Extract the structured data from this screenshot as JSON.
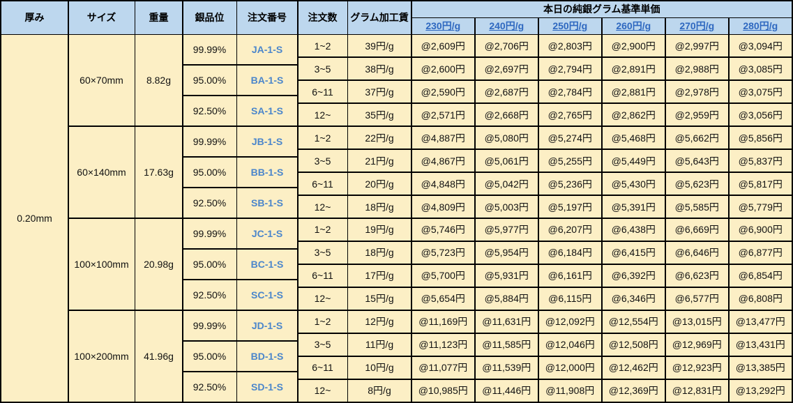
{
  "table": {
    "headers": {
      "thickness": "厚み",
      "size": "サイズ",
      "weight": "重量",
      "purity": "銀品位",
      "order_no": "注文番号",
      "order_qty": "注文数",
      "gram_fee": "グラム加工賃",
      "base_price_group": "本日の純銀グラム基準単価",
      "price_columns": [
        "230円/g",
        "240円/g",
        "250円/g",
        "260円/g",
        "270円/g",
        "280円/g"
      ]
    },
    "thickness_value": "0.20mm",
    "sections": [
      {
        "size": "60×70mm",
        "weight": "8.82g",
        "purities": [
          {
            "purity": "99.99%",
            "order_no": "JA-1-S"
          },
          {
            "purity": "95.00%",
            "order_no": "BA-1-S"
          },
          {
            "purity": "92.50%",
            "order_no": "SA-1-S"
          }
        ],
        "rows": [
          {
            "qty": "1~2",
            "fee": "39円/g",
            "prices": [
              "@2,609円",
              "@2,706円",
              "@2,803円",
              "@2,900円",
              "@2,997円",
              "@3,094円"
            ]
          },
          {
            "qty": "3~5",
            "fee": "38円/g",
            "prices": [
              "@2,600円",
              "@2,697円",
              "@2,794円",
              "@2,891円",
              "@2,988円",
              "@3,085円"
            ]
          },
          {
            "qty": "6~11",
            "fee": "37円/g",
            "prices": [
              "@2,590円",
              "@2,687円",
              "@2,784円",
              "@2,881円",
              "@2,978円",
              "@3,075円"
            ]
          },
          {
            "qty": "12~",
            "fee": "35円/g",
            "prices": [
              "@2,571円",
              "@2,668円",
              "@2,765円",
              "@2,862円",
              "@2,959円",
              "@3,056円"
            ]
          }
        ]
      },
      {
        "size": "60×140mm",
        "weight": "17.63g",
        "purities": [
          {
            "purity": "99.99%",
            "order_no": "JB-1-S"
          },
          {
            "purity": "95.00%",
            "order_no": "BB-1-S"
          },
          {
            "purity": "92.50%",
            "order_no": "SB-1-S"
          }
        ],
        "rows": [
          {
            "qty": "1~2",
            "fee": "22円/g",
            "prices": [
              "@4,887円",
              "@5,080円",
              "@5,274円",
              "@5,468円",
              "@5,662円",
              "@5,856円"
            ]
          },
          {
            "qty": "3~5",
            "fee": "21円/g",
            "prices": [
              "@4,867円",
              "@5,061円",
              "@5,255円",
              "@5,449円",
              "@5,643円",
              "@5,837円"
            ]
          },
          {
            "qty": "6~11",
            "fee": "20円/g",
            "prices": [
              "@4,848円",
              "@5,042円",
              "@5,236円",
              "@5,430円",
              "@5,623円",
              "@5,817円"
            ]
          },
          {
            "qty": "12~",
            "fee": "18円/g",
            "prices": [
              "@4,809円",
              "@5,003円",
              "@5,197円",
              "@5,391円",
              "@5,585円",
              "@5,779円"
            ]
          }
        ]
      },
      {
        "size": "100×100mm",
        "weight": "20.98g",
        "purities": [
          {
            "purity": "99.99%",
            "order_no": "JC-1-S"
          },
          {
            "purity": "95.00%",
            "order_no": "BC-1-S"
          },
          {
            "purity": "92.50%",
            "order_no": "SC-1-S"
          }
        ],
        "rows": [
          {
            "qty": "1~2",
            "fee": "19円/g",
            "prices": [
              "@5,746円",
              "@5,977円",
              "@6,207円",
              "@6,438円",
              "@6,669円",
              "@6,900円"
            ]
          },
          {
            "qty": "3~5",
            "fee": "18円/g",
            "prices": [
              "@5,723円",
              "@5,954円",
              "@6,184円",
              "@6,415円",
              "@6,646円",
              "@6,877円"
            ]
          },
          {
            "qty": "6~11",
            "fee": "17円/g",
            "prices": [
              "@5,700円",
              "@5,931円",
              "@6,161円",
              "@6,392円",
              "@6,623円",
              "@6,854円"
            ]
          },
          {
            "qty": "12~",
            "fee": "15円/g",
            "prices": [
              "@5,654円",
              "@5,884円",
              "@6,115円",
              "@6,346円",
              "@6,577円",
              "@6,808円"
            ]
          }
        ]
      },
      {
        "size": "100×200mm",
        "weight": "41.96g",
        "purities": [
          {
            "purity": "99.99%",
            "order_no": "JD-1-S"
          },
          {
            "purity": "95.00%",
            "order_no": "BD-1-S"
          },
          {
            "purity": "92.50%",
            "order_no": "SD-1-S"
          }
        ],
        "rows": [
          {
            "qty": "1~2",
            "fee": "12円/g",
            "prices": [
              "@11,169円",
              "@11,631円",
              "@12,092円",
              "@12,554円",
              "@13,015円",
              "@13,477円"
            ]
          },
          {
            "qty": "3~5",
            "fee": "11円/g",
            "prices": [
              "@11,123円",
              "@11,585円",
              "@12,046円",
              "@12,508円",
              "@12,969円",
              "@13,431円"
            ]
          },
          {
            "qty": "6~11",
            "fee": "10円/g",
            "prices": [
              "@11,077円",
              "@11,539円",
              "@12,000円",
              "@12,462円",
              "@12,923円",
              "@13,385円"
            ]
          },
          {
            "qty": "12~",
            "fee": "8円/g",
            "prices": [
              "@10,985円",
              "@11,446円",
              "@11,908円",
              "@12,369円",
              "@12,831円",
              "@13,292円"
            ]
          }
        ]
      }
    ],
    "colors": {
      "header_bg": "#BDD7EE",
      "body_bg": "#FCEFC5",
      "border": "#000000",
      "price_link_blue": "#2E68C0",
      "order_link_blue": "#4B86CB"
    }
  }
}
